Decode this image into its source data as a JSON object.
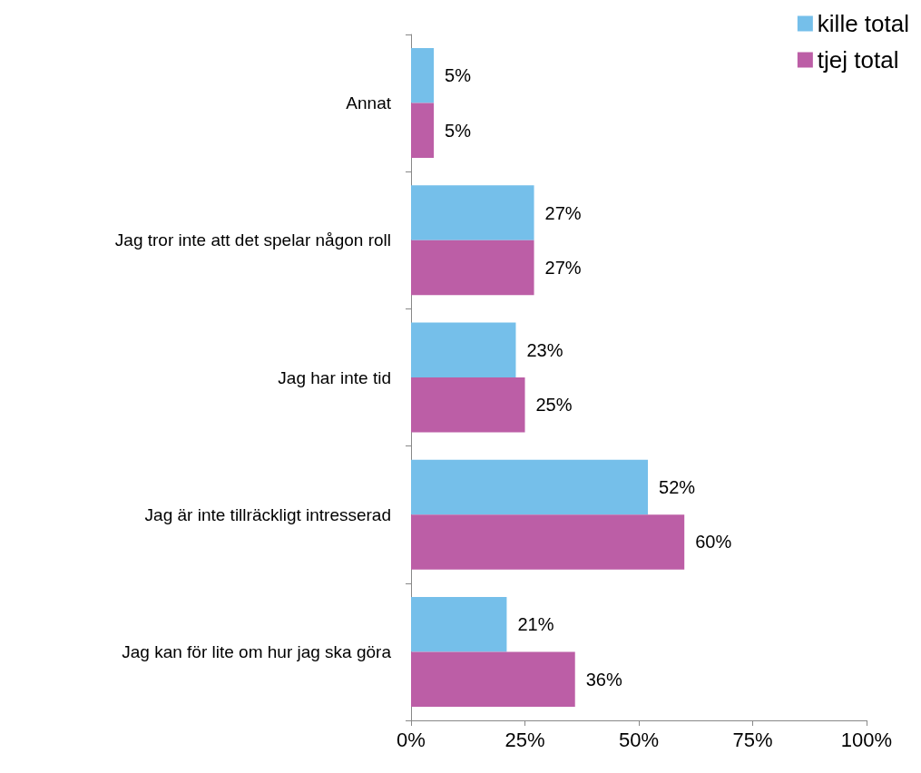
{
  "chart_data": {
    "type": "bar",
    "orientation": "horizontal",
    "categories": [
      "Annat",
      "Jag tror inte att det spelar någon roll",
      "Jag har inte tid",
      "Jag är inte tillräckligt intresserad",
      "Jag kan för lite om hur jag ska göra"
    ],
    "series": [
      {
        "name": "kille total",
        "color": "#75bfea",
        "values": [
          5,
          27,
          23,
          52,
          21
        ],
        "value_labels": [
          "5%",
          "27%",
          "23%",
          "52%",
          "21%"
        ]
      },
      {
        "name": "tjej total",
        "color": "#bc5ea6",
        "values": [
          5,
          27,
          25,
          60,
          36
        ],
        "value_labels": [
          "5%",
          "27%",
          "25%",
          "60%",
          "36%"
        ]
      }
    ],
    "xlim": [
      0,
      100
    ],
    "xticks": [
      {
        "value": 0,
        "label": "0%"
      },
      {
        "value": 25,
        "label": "25%"
      },
      {
        "value": 50,
        "label": "50%"
      },
      {
        "value": 75,
        "label": "75%"
      },
      {
        "value": 100,
        "label": "100%"
      }
    ],
    "grid": false,
    "legend": "top right"
  }
}
